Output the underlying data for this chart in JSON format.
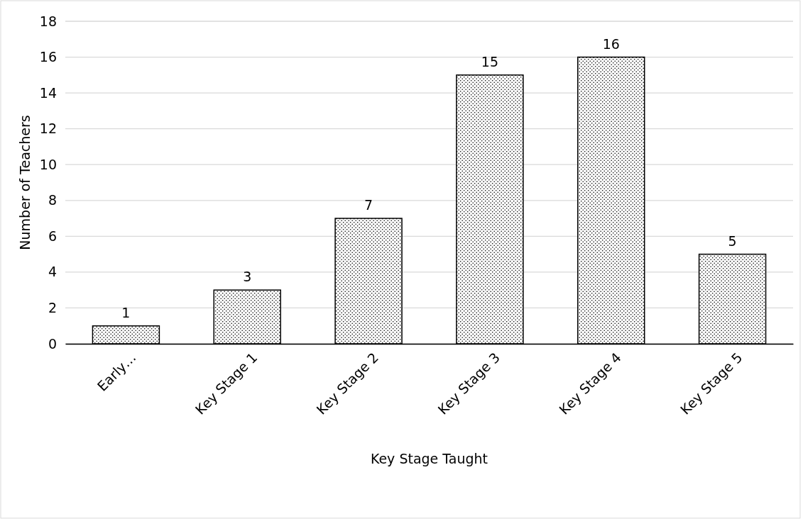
{
  "chart_data": {
    "type": "bar",
    "xlabel": "Key Stage Taught",
    "ylabel": "Number of Teachers",
    "categories": [
      "Early…",
      "Key Stage 1",
      "Key Stage 2",
      "Key Stage 3",
      "Key Stage 4",
      "Key Stage 5"
    ],
    "values": [
      1,
      3,
      7,
      15,
      16,
      5
    ],
    "color": "#000000",
    "ylim": [
      0,
      18
    ],
    "yticks": [
      0,
      2,
      4,
      6,
      8,
      10,
      12,
      14,
      16,
      18
    ],
    "grid": "y",
    "data_labels": true
  }
}
